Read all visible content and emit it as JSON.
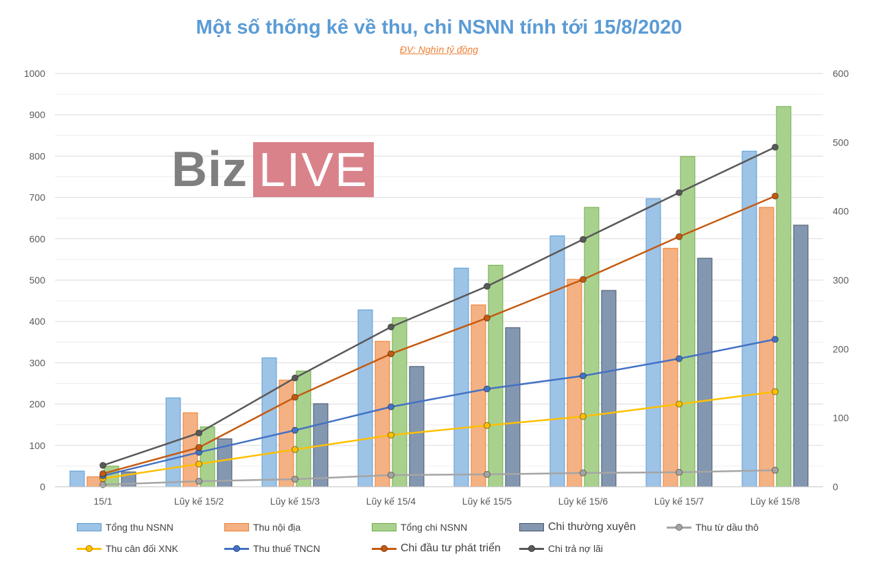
{
  "title": "Một số thống kê về thu, chi NSNN tính tới 15/8/2020",
  "subtitle": "ĐV: Nghìn tỷ đồng",
  "logo": {
    "part1": "Biz",
    "part2": "LIVE"
  },
  "chart_data": {
    "type": "bar",
    "title": "Một số thống kê về thu, chi NSNN tính tới 15/8/2020",
    "subtitle": "ĐV: Nghìn tỷ đồng",
    "categories": [
      "15/1",
      "Lũy kế 15/2",
      "Lũy kế 15/3",
      "Lũy kế 15/4",
      "Lũy kế 15/5",
      "Lũy kế 15/6",
      "Lũy kế 15/7",
      "Lũy kế 15/8"
    ],
    "y_left": {
      "min": 0,
      "max": 1000,
      "ticks": [
        0,
        100,
        200,
        300,
        400,
        500,
        600,
        700,
        800,
        900,
        1000
      ]
    },
    "y_right": {
      "min": 0,
      "max": 600,
      "ticks": [
        0,
        100,
        200,
        300,
        400,
        500,
        600
      ]
    },
    "grid": true,
    "legend_position": "bottom",
    "series": [
      {
        "name": "Tổng thu NSNN",
        "kind": "bar",
        "axis": "left",
        "color": "#9dc3e6",
        "stroke": "#5b9bd5",
        "values": [
          38,
          215,
          312,
          428,
          529,
          607,
          697,
          812
        ]
      },
      {
        "name": "Thu nội địa",
        "kind": "bar",
        "axis": "left",
        "color": "#f4b183",
        "stroke": "#ed7d31",
        "values": [
          24,
          179,
          258,
          352,
          440,
          502,
          577,
          676
        ]
      },
      {
        "name": "Tổng chi NSNN",
        "kind": "bar",
        "axis": "left",
        "color": "#a9d18e",
        "stroke": "#70ad47",
        "values": [
          50,
          145,
          280,
          409,
          536,
          676,
          799,
          920
        ]
      },
      {
        "name": "Chi thường xuyên",
        "kind": "bar",
        "axis": "left",
        "color": "#8497b0",
        "stroke": "#44546a",
        "values": [
          36,
          116,
          201,
          291,
          385,
          475,
          553,
          633
        ]
      },
      {
        "name": "Thu từ dầu thô",
        "kind": "line",
        "axis": "right",
        "color": "#a5a5a5",
        "values": [
          3,
          8,
          11,
          17,
          18,
          20,
          21,
          24
        ]
      },
      {
        "name": "Thu cân đối XNK",
        "kind": "line",
        "axis": "right",
        "color": "#ffc000",
        "values": [
          12,
          33,
          54,
          75,
          89,
          102,
          120,
          138
        ]
      },
      {
        "name": "Thu thuế TNCN",
        "kind": "line",
        "axis": "right",
        "color": "#4472c4",
        "values": [
          16,
          50,
          82,
          116,
          142,
          161,
          186,
          214
        ]
      },
      {
        "name": "Chi đầu tư phát triển",
        "kind": "line",
        "axis": "right",
        "color": "#c55a11",
        "values": [
          19,
          57,
          130,
          193,
          245,
          301,
          363,
          422
        ]
      },
      {
        "name": "Chi trả nợ lãi",
        "kind": "line",
        "axis": "right",
        "color": "#595959",
        "values": [
          31,
          78,
          158,
          232,
          291,
          359,
          427,
          493
        ]
      }
    ]
  }
}
